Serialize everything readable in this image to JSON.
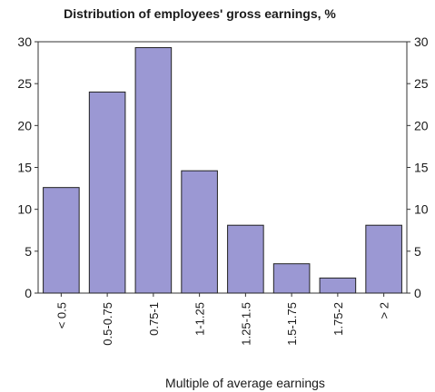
{
  "chart_data": {
    "type": "bar",
    "title": "Distribution of employees' gross earnings, %",
    "xlabel": "Multiple of average earnings",
    "ylabel": "",
    "categories": [
      "< 0.5",
      "0.5-0.75",
      "0.75-1",
      "1-1.25",
      "1.25-1.5",
      "1.5-1.75",
      "1.75-2",
      "> 2"
    ],
    "values": [
      12.6,
      24,
      29.3,
      14.6,
      8.1,
      3.5,
      1.8,
      8.1
    ],
    "ylim": [
      0,
      30
    ],
    "yticks": [
      "0",
      "5",
      "10",
      "15",
      "20",
      "25",
      "30"
    ],
    "right_yticks": [
      "0",
      "5",
      "10",
      "15",
      "20",
      "25",
      "30"
    ],
    "grid": false,
    "legend": "none",
    "bar_color": "#9b98d3",
    "bar_edge_color": "#222222"
  }
}
